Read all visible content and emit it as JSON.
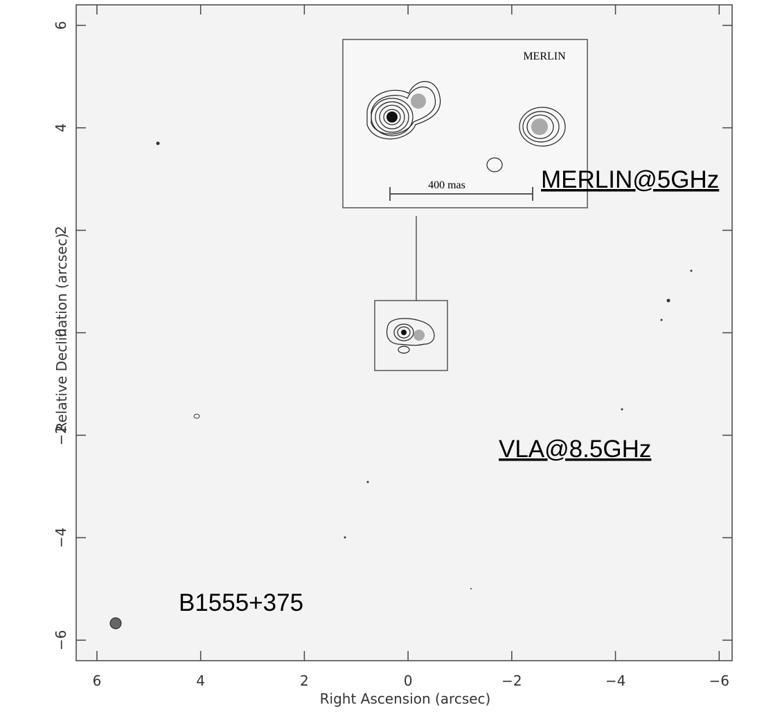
{
  "chart_data": {
    "type": "image",
    "xlabel": "Right Ascension  (arcsec)",
    "ylabel": "Relative Declination  (arcsec)",
    "xlim": [
      6.4,
      -6.25
    ],
    "ylim": [
      -6.4,
      6.4
    ],
    "xticks": [
      6,
      4,
      2,
      0,
      {
        "value": -2,
        "label": "−2"
      },
      {
        "value": -4,
        "label": "−4"
      },
      {
        "value": -6,
        "label": "−6"
      }
    ],
    "yticks": [
      {
        "value": -6,
        "label": "−6"
      },
      {
        "value": -4,
        "label": "−4"
      },
      {
        "value": -2,
        "label": "−2"
      },
      0,
      2,
      4,
      6
    ],
    "annotations": {
      "inset_title": "MERLIN",
      "scale_bar": "400 mas",
      "merlin": "MERLIN@5GHz",
      "vla": "VLA@8.5GHz",
      "source": "B1555+375"
    }
  }
}
